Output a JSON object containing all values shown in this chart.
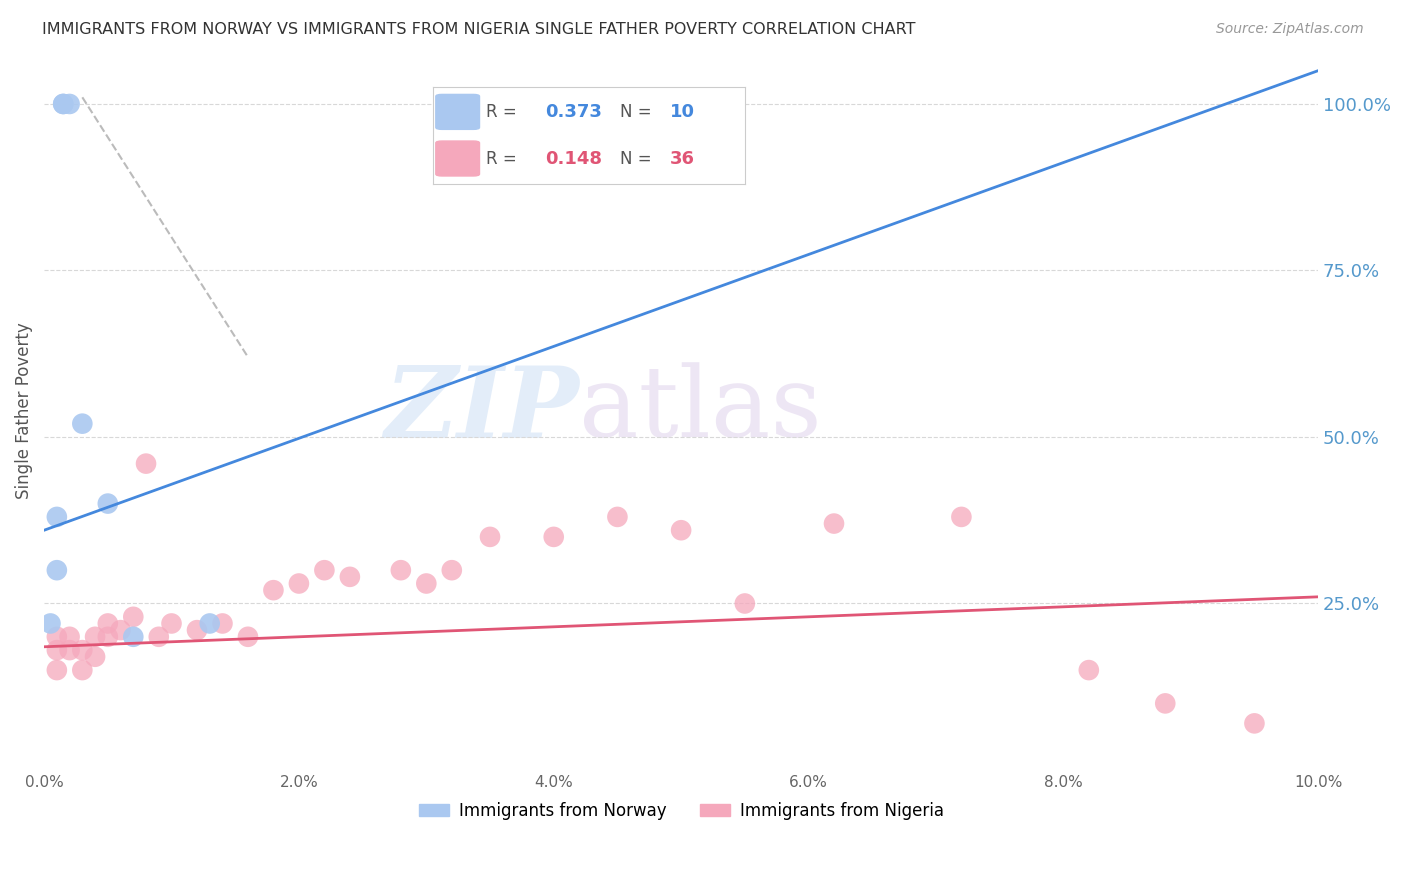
{
  "title": "IMMIGRANTS FROM NORWAY VS IMMIGRANTS FROM NIGERIA SINGLE FATHER POVERTY CORRELATION CHART",
  "source": "Source: ZipAtlas.com",
  "ylabel": "Single Father Poverty",
  "xmin": 0.0,
  "xmax": 0.1,
  "ymin": 0.0,
  "ymax": 1.08,
  "norway_color": "#aac8f0",
  "nigeria_color": "#f5a8bc",
  "norway_line_color": "#4488dd",
  "nigeria_line_color": "#e05575",
  "dash_color": "#bbbbbb",
  "norway_x": [
    0.0005,
    0.001,
    0.001,
    0.0015,
    0.0015,
    0.002,
    0.003,
    0.005,
    0.007,
    0.013
  ],
  "norway_y": [
    0.22,
    0.3,
    0.38,
    1.0,
    1.0,
    1.0,
    0.52,
    0.4,
    0.2,
    0.22
  ],
  "nigeria_x": [
    0.001,
    0.001,
    0.001,
    0.002,
    0.002,
    0.003,
    0.003,
    0.004,
    0.004,
    0.005,
    0.005,
    0.006,
    0.007,
    0.008,
    0.009,
    0.01,
    0.012,
    0.014,
    0.016,
    0.018,
    0.02,
    0.022,
    0.024,
    0.028,
    0.03,
    0.032,
    0.035,
    0.04,
    0.045,
    0.05,
    0.055,
    0.062,
    0.072,
    0.082,
    0.088,
    0.095
  ],
  "nigeria_y": [
    0.18,
    0.2,
    0.15,
    0.18,
    0.2,
    0.15,
    0.18,
    0.17,
    0.2,
    0.2,
    0.22,
    0.21,
    0.23,
    0.46,
    0.2,
    0.22,
    0.21,
    0.22,
    0.2,
    0.27,
    0.28,
    0.3,
    0.29,
    0.3,
    0.28,
    0.3,
    0.35,
    0.35,
    0.38,
    0.36,
    0.25,
    0.37,
    0.38,
    0.15,
    0.1,
    0.07
  ],
  "norway_line_x": [
    0.0,
    0.1
  ],
  "norway_line_y": [
    0.36,
    1.05
  ],
  "nigeria_line_x": [
    0.0,
    0.1
  ],
  "nigeria_line_y": [
    0.185,
    0.26
  ],
  "dash_line_x": [
    0.003,
    0.016
  ],
  "dash_line_y": [
    1.01,
    0.62
  ],
  "right_yticks": [
    0.0,
    0.25,
    0.5,
    0.75,
    1.0
  ],
  "right_yticklabels": [
    "",
    "25.0%",
    "50.0%",
    "75.0%",
    "100.0%"
  ],
  "xtick_positions": [
    0.0,
    0.02,
    0.04,
    0.06,
    0.08,
    0.1
  ],
  "xtick_labels": [
    "0.0%",
    "2.0%",
    "4.0%",
    "6.0%",
    "8.0%",
    "10.0%"
  ],
  "watermark_zip": "ZIP",
  "watermark_atlas": "atlas",
  "background_color": "#ffffff",
  "grid_color": "#d8d8d8",
  "title_color": "#333333",
  "right_axis_color": "#5599cc",
  "legend_norway_r": "0.373",
  "legend_norway_n": "10",
  "legend_nigeria_r": "0.148",
  "legend_nigeria_n": "36"
}
